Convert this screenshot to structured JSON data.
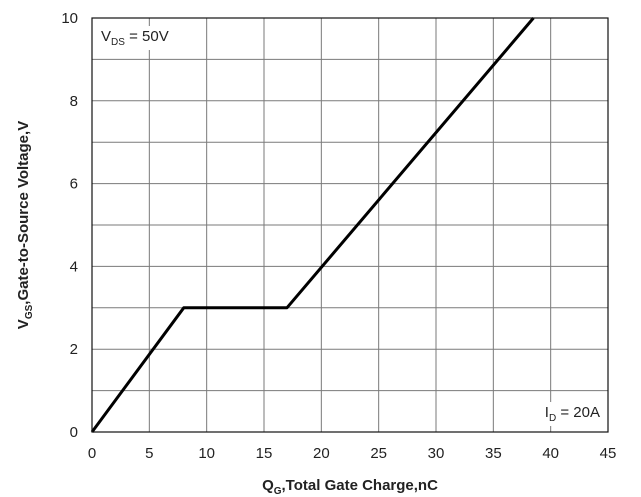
{
  "chart_data": {
    "type": "line",
    "xlabel_main": "Q",
    "xlabel_sub": "G",
    "xlabel_rest": ",Total Gate Charge,nC",
    "ylabel_main": "V",
    "ylabel_sub": "GS",
    "ylabel_rest": ",Gate-to-Source Voltage,V",
    "xlim": [
      0,
      45
    ],
    "ylim": [
      0,
      10
    ],
    "x_ticks": [
      0,
      5,
      10,
      15,
      20,
      25,
      30,
      35,
      40,
      45
    ],
    "y_ticks": [
      0,
      2,
      4,
      6,
      8,
      10
    ],
    "x_grid_step": 5,
    "y_grid_step": 1,
    "grid": true,
    "annotations": [
      {
        "main": "V",
        "sub": "DS",
        "rest": " = 50V",
        "placement": "top-left"
      },
      {
        "main": "I",
        "sub": "D",
        "rest": " = 20A",
        "placement": "bottom-right"
      }
    ],
    "series": [
      {
        "x": [
          0,
          8,
          17,
          38.5
        ],
        "y": [
          0,
          3,
          3,
          10
        ]
      }
    ]
  }
}
